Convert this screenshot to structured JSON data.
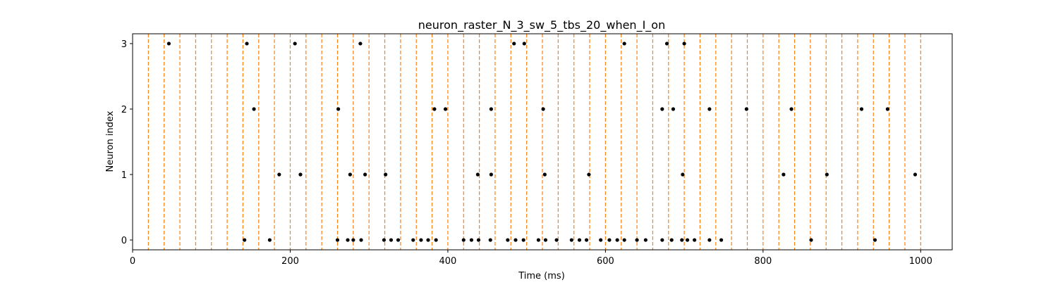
{
  "chart_data": {
    "type": "scatter",
    "title": "neuron_raster_N_3_sw_5_tbs_20_when_I_on",
    "xlabel": "Time (ms)",
    "ylabel": "Neuron index",
    "xlim": [
      0,
      1040
    ],
    "ylim": [
      -0.15,
      3.15
    ],
    "xticks": [
      0,
      200,
      400,
      600,
      800,
      1000
    ],
    "yticks": [
      0,
      1,
      2,
      3
    ],
    "grid": false,
    "marker_color": "#000000",
    "boundary_color": "#ff7f0e",
    "time_bin_boundaries": [
      20,
      40,
      60,
      80,
      100,
      120,
      140,
      160,
      180,
      200,
      220,
      240,
      260,
      280,
      300,
      320,
      340,
      360,
      380,
      400,
      420,
      440,
      460,
      480,
      500,
      520,
      540,
      560,
      580,
      600,
      620,
      640,
      660,
      680,
      700,
      720,
      740,
      760,
      780,
      800,
      820,
      840,
      860,
      880,
      900,
      920,
      940,
      960,
      980,
      1000
    ],
    "series": [
      {
        "neuron": 0,
        "x": [
          142,
          174,
          260,
          273,
          280,
          290,
          319,
          328,
          337,
          356,
          366,
          375,
          385,
          420,
          430,
          439,
          454,
          476,
          486,
          496,
          515,
          524,
          538,
          557,
          567,
          576,
          594,
          605,
          615,
          624,
          640,
          651,
          672,
          684,
          697,
          704,
          713,
          732,
          747,
          861,
          942
        ]
      },
      {
        "neuron": 1,
        "x": [
          186,
          213,
          276,
          295,
          321,
          438,
          455,
          523,
          579,
          698,
          826,
          881,
          993
        ]
      },
      {
        "neuron": 2,
        "x": [
          154,
          261,
          383,
          397,
          455,
          521,
          672,
          686,
          732,
          779,
          836,
          925,
          958
        ]
      },
      {
        "neuron": 3,
        "x": [
          46,
          145,
          206,
          289,
          484,
          497,
          624,
          678,
          700
        ]
      }
    ]
  }
}
